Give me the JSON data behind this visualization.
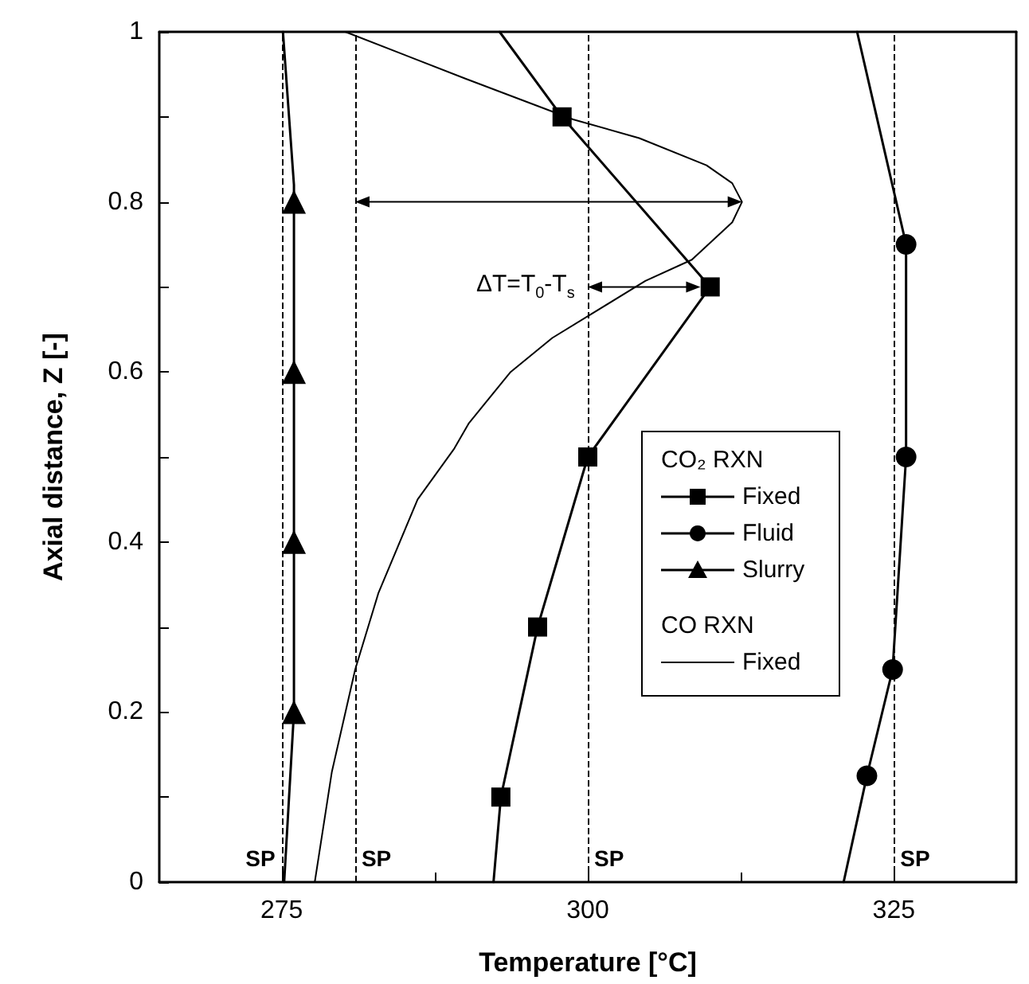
{
  "chart_data": {
    "type": "line",
    "xlabel": "Temperature [°C]",
    "ylabel": "Axial distance, Z [-]",
    "legend_title": "CO₂ RXN",
    "legend": "right",
    "grid": false,
    "xlim": [
      265,
      335
    ],
    "xticks": [
      275,
      {
        "value": 287.5,
        "label": null
      },
      300,
      {
        "value": 312.5,
        "label": null
      },
      325
    ],
    "ylim": [
      0,
      1
    ],
    "yticks": [
      0,
      {
        "value": 0.1,
        "label": null
      },
      0.2,
      {
        "value": 0.3,
        "label": null
      },
      0.4,
      {
        "value": 0.5,
        "label": null
      },
      0.6,
      {
        "value": 0.7,
        "label": null
      },
      0.8,
      {
        "value": 0.9,
        "label": null
      },
      1.0
    ],
    "series": [
      {
        "name": "Fixed",
        "color": "#000000",
        "marker": "square",
        "x": [
          292.9,
          295.9,
          300.0,
          310.0,
          297.9
        ],
        "values": [
          0.1,
          0.3,
          0.5,
          0.7,
          0.9
        ]
      },
      {
        "name": "Fluid",
        "color": "#000000",
        "marker": "circle",
        "x": [
          322.8,
          324.9,
          326.0,
          326.0
        ],
        "values": [
          0.125,
          0.25,
          0.5,
          0.75
        ]
      },
      {
        "name": "Slurry",
        "color": "#000000",
        "marker": "triangle",
        "x": [
          276.0,
          276.0,
          276.0,
          276.0
        ],
        "values": [
          0.2,
          0.4,
          0.6,
          0.8
        ]
      },
      {
        "name": "Fixed",
        "color": "#000000",
        "marker": "none",
        "x": [
          277.7,
          279.1,
          281.0,
          282.9,
          286.1,
          289.1,
          290.3,
          293.7,
          297.1,
          304.7,
          308.5,
          311.8,
          312.6,
          311.8,
          309.7,
          304.2,
          298.8,
          290.0,
          280.2
        ],
        "values": [
          0,
          0.13,
          0.25,
          0.34,
          0.45,
          0.51,
          0.54,
          0.6,
          0.64,
          0.707,
          0.732,
          0.776,
          0.8,
          0.822,
          0.843,
          0.875,
          0.897,
          0.945,
          1.0
        ]
      },
      {
        "color": "#000000",
        "marker": "none",
        "x": [
          292.3,
          292.9
        ],
        "values": [
          0,
          0.1
        ]
      },
      {
        "color": "#000000",
        "marker": "none",
        "x": [
          297.9,
          292.8
        ],
        "values": [
          0.9,
          1.0
        ]
      },
      {
        "color": "#000000",
        "marker": "none",
        "x": [
          320.9,
          322.8
        ],
        "values": [
          0,
          0.125
        ]
      },
      {
        "color": "#000000",
        "marker": "none",
        "x": [
          326.0,
          322.0
        ],
        "values": [
          0.75,
          1.0
        ]
      },
      {
        "color": "#000000",
        "marker": "none",
        "x": [
          275.2,
          276.0
        ],
        "values": [
          0,
          0.2
        ]
      },
      {
        "color": "#000000",
        "marker": "none",
        "x": [
          276.0,
          276.0,
          275.1
        ],
        "values": [
          0.8,
          0.82,
          1.0
        ]
      }
    ],
    "ref_lines": [
      {
        "axis": "x",
        "value": 275,
        "label": "SP",
        "line_style": "dashed"
      },
      {
        "axis": "x",
        "value": 281,
        "label": "SP",
        "line_style": "dashed"
      },
      {
        "axis": "x",
        "value": 300,
        "label": "SP",
        "line_style": "dashed"
      },
      {
        "axis": "x",
        "value": 325,
        "label": "SP",
        "line_style": "dashed"
      }
    ],
    "annotations": [
      {
        "text": "ΔT=T$_{0}$-T$_{s}$",
        "x": 300,
        "y": 0.7
      },
      "CO RXN"
    ]
  }
}
